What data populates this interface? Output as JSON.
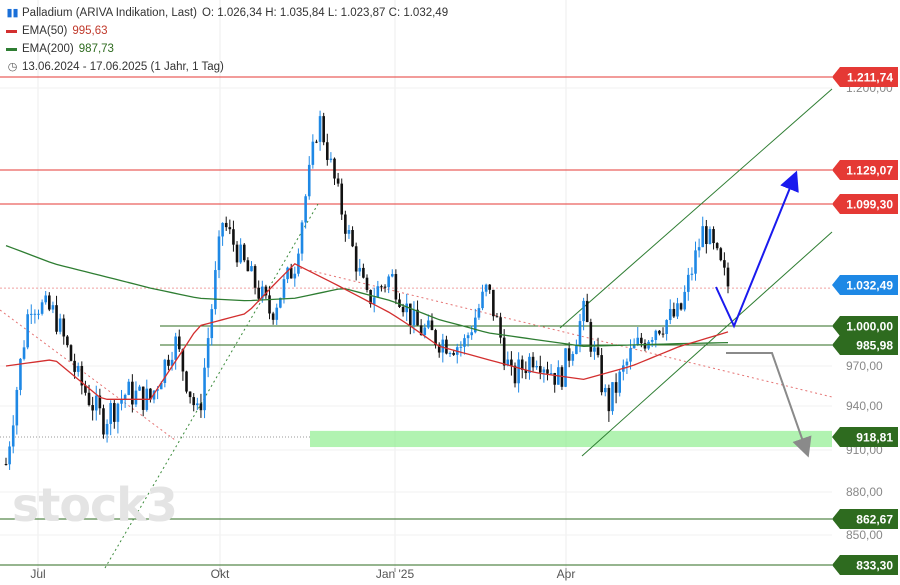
{
  "legend": {
    "instrument": "Palladium (ARIVA Indikation, Last)",
    "ohlc": "O: 1.026,34  H: 1.035,84  L: 1.023,87  C: 1.032,49",
    "ema50_label": "EMA(50)",
    "ema50_value": "995,63",
    "ema200_label": "EMA(200)",
    "ema200_value": "987,73",
    "range": "13.06.2024 - 17.06.2025  (1 Jahr, 1 Tag)",
    "icons": {
      "instrument": "candlestick-icon",
      "range": "clock-icon"
    }
  },
  "watermark": "stock3",
  "colors": {
    "up": "#1e88e5",
    "down": "#111111",
    "ema50": "#d32f2f",
    "ema200": "#2e7d32",
    "resistance": "#e53935",
    "support": "#2e6b1f",
    "zone": "#90ee90",
    "blue_arrow": "#1a1aee",
    "grey_arrow": "#8a8a8a"
  },
  "chart_data": {
    "type": "candlestick",
    "x_labels": [
      "Jul",
      "Okt",
      "Jan '25",
      "Apr"
    ],
    "y_ticks": [
      "850,00",
      "880,00",
      "910,00",
      "940,00",
      "970,00",
      "1.200,00"
    ],
    "ylim": [
      833,
      1230
    ],
    "price_labels": [
      {
        "text": "1.211,74",
        "value": 1211.74,
        "kind": "resistance"
      },
      {
        "text": "1.129,07",
        "value": 1129.07,
        "kind": "resistance"
      },
      {
        "text": "1.099,30",
        "value": 1099.3,
        "kind": "resistance"
      },
      {
        "text": "1.032,49",
        "value": 1032.49,
        "kind": "last"
      },
      {
        "text": "1.000,00",
        "value": 1000.0,
        "kind": "support"
      },
      {
        "text": "985,98",
        "value": 985.98,
        "kind": "support"
      },
      {
        "text": "918,81",
        "value": 918.81,
        "kind": "zone"
      },
      {
        "text": "862,67",
        "value": 862.67,
        "kind": "support"
      },
      {
        "text": "833,30",
        "value": 833.3,
        "kind": "support"
      }
    ],
    "series": [
      {
        "name": "Palladium",
        "kind": "close",
        "x": [
          0,
          10,
          20,
          30,
          40,
          50,
          60,
          70,
          80,
          90,
          100,
          110,
          120,
          130,
          140,
          150,
          160,
          170,
          180,
          190,
          200,
          210,
          220,
          230,
          240,
          250,
          260,
          270,
          280,
          290,
          300
        ],
        "values": [
          900,
          1020,
          1010,
          960,
          930,
          950,
          945,
          990,
          930,
          1085,
          1045,
          1010,
          1050,
          1175,
          1090,
          1020,
          1040,
          1000,
          990,
          985,
          1030,
          960,
          980,
          960,
          1010,
          940,
          980,
          1000,
          1010,
          1080,
          1032
        ]
      },
      {
        "name": "EMA(50)",
        "kind": "ema",
        "x": [
          0,
          20,
          40,
          60,
          80,
          100,
          120,
          140,
          160,
          180,
          200,
          220,
          240,
          260,
          280,
          300
        ],
        "values": [
          970,
          975,
          945,
          945,
          1000,
          1010,
          1050,
          1030,
          1010,
          985,
          975,
          965,
          960,
          970,
          985,
          995.63
        ]
      },
      {
        "name": "EMA(200)",
        "kind": "ema",
        "x": [
          0,
          20,
          40,
          60,
          80,
          100,
          120,
          140,
          160,
          180,
          200,
          220,
          240,
          260,
          280,
          300
        ],
        "values": [
          1065,
          1050,
          1040,
          1030,
          1022,
          1020,
          1022,
          1030,
          1020,
          1005,
          995,
          990,
          985,
          986,
          987,
          987.73
        ]
      }
    ],
    "annotations": {
      "resistance_lines": [
        1211.74,
        1129.07,
        1099.3
      ],
      "support_lines": [
        1000.0,
        985.98,
        862.67,
        833.3
      ],
      "support_zone": [
        912,
        923
      ],
      "projection_blue": "from 1.032,49 down to 1.000,00 then up to 1.129,07",
      "projection_grey": "from 985,98 down to 918,81"
    }
  }
}
